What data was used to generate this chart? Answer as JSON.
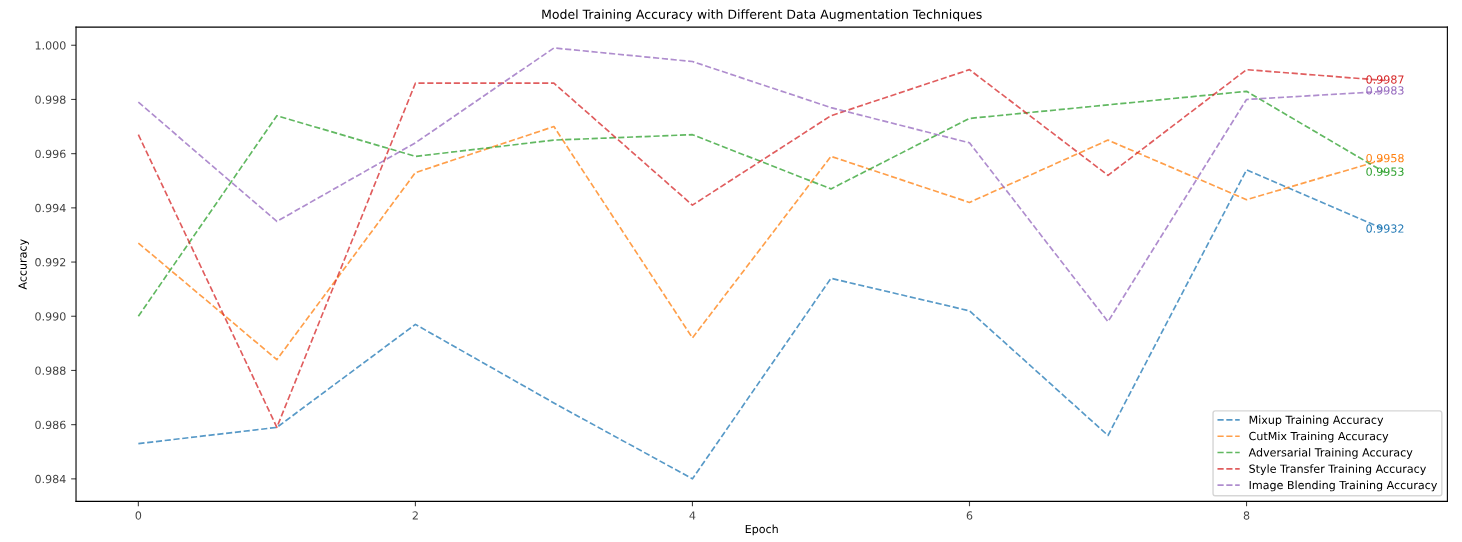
{
  "chart_data": {
    "type": "line",
    "title": "Model Training Accuracy with Different Data Augmentation Techniques",
    "xlabel": "Epoch",
    "ylabel": "Accuracy",
    "x": [
      0,
      1,
      2,
      3,
      4,
      5,
      6,
      7,
      8,
      9
    ],
    "series": [
      {
        "name": "Mixup Training Accuracy",
        "color": "#1f77b4",
        "values": [
          0.9853,
          0.9859,
          0.9897,
          0.9868,
          0.984,
          0.9914,
          0.9902,
          0.9856,
          0.9954,
          0.9932
        ],
        "value_labels": [
          null,
          null,
          null,
          null,
          null,
          null,
          null,
          null,
          null,
          "0.9932"
        ]
      },
      {
        "name": "CutMix Training Accuracy",
        "color": "#ff7f0e",
        "values": [
          0.9927,
          0.9884,
          0.9953,
          0.997,
          0.9892,
          0.9959,
          0.9942,
          0.9965,
          0.9943,
          0.9958
        ],
        "value_labels": [
          null,
          null,
          null,
          null,
          null,
          null,
          null,
          null,
          null,
          "0.9958"
        ]
      },
      {
        "name": "Adversarial Training Accuracy",
        "color": "#2ca02c",
        "values": [
          0.99,
          0.9974,
          0.9959,
          0.9965,
          0.9967,
          0.9947,
          0.9973,
          0.9978,
          0.9983,
          0.9953
        ],
        "value_labels": [
          null,
          null,
          null,
          null,
          null,
          null,
          null,
          null,
          null,
          "0.9953"
        ]
      },
      {
        "name": "Style Transfer Training Accuracy",
        "color": "#d62728",
        "values": [
          0.9967,
          0.9859,
          0.9986,
          0.9986,
          0.9941,
          0.9974,
          0.9991,
          0.9952,
          0.9991,
          0.9987
        ],
        "value_labels": [
          null,
          null,
          null,
          null,
          null,
          null,
          null,
          null,
          null,
          "0.9987"
        ]
      },
      {
        "name": "Image Blending Training Accuracy",
        "color": "#9467bd",
        "values": [
          0.9979,
          0.9935,
          0.9964,
          0.9999,
          0.9994,
          0.9977,
          0.9964,
          0.9898,
          0.998,
          0.9983
        ],
        "value_labels": [
          null,
          null,
          null,
          null,
          null,
          null,
          null,
          null,
          null,
          "0.9983"
        ]
      }
    ],
    "xlim": [
      -0.45,
      9.45
    ],
    "xticks": [
      0,
      2,
      4,
      6,
      8
    ],
    "ylim": [
      0.98317,
      1.00067
    ],
    "yticks": [
      {
        "value": 0.984,
        "label": "0.984"
      },
      {
        "value": 0.986,
        "label": "0.986"
      },
      {
        "value": 0.988,
        "label": "0.988"
      },
      {
        "value": 0.99,
        "label": "0.990"
      },
      {
        "value": 0.992,
        "label": "0.992"
      },
      {
        "value": 0.994,
        "label": "0.994"
      },
      {
        "value": 0.996,
        "label": "0.996"
      },
      {
        "value": 0.998,
        "label": "0.998"
      },
      {
        "value": 1.0,
        "label": "1.000"
      }
    ],
    "line_style": "dashed",
    "marker": "none",
    "grid": false,
    "legend": "bottom right"
  }
}
